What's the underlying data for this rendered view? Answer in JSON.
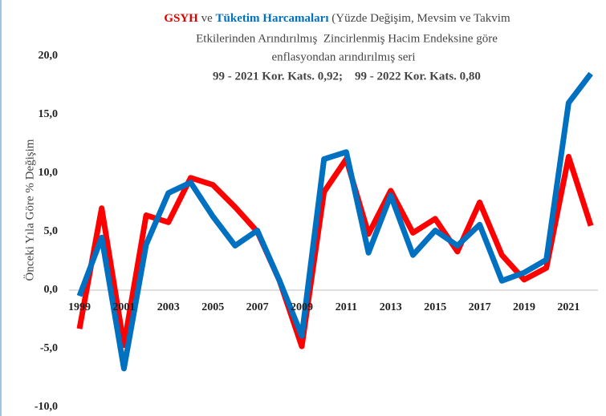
{
  "chart_data": {
    "type": "line",
    "title_connector": " ve ",
    "title_line1_rest": " (Yüzde Değişim, Mevsim ve Takvim",
    "title_line2": "Etkilerinden Arındırılmış  Zincirlenmiş Hacim Endeksine göre",
    "title_line3": "enflasyondan arındırılmış seri",
    "title_line4": "99 - 2021 Kor. Kats. 0,92;    99 - 2022 Kor. Kats. 0,80",
    "y_label": "Önceki Yıla Göre % Değişim",
    "categories": [
      "1999",
      null,
      "2001",
      null,
      "2003",
      null,
      "2005",
      null,
      "2007",
      null,
      "2009",
      null,
      "2011",
      null,
      "2013",
      null,
      "2015",
      null,
      "2017",
      null,
      "2019",
      null,
      "2021",
      null
    ],
    "series": [
      {
        "name": "GSYH",
        "color": "#ff0000",
        "values": [
          -3.3,
          7.0,
          -4.7,
          6.4,
          5.8,
          9.6,
          9.0,
          7.1,
          5.0,
          0.8,
          -4.8,
          8.4,
          11.2,
          4.8,
          8.5,
          4.9,
          6.1,
          3.3,
          7.5,
          3.0,
          0.9,
          1.9,
          11.4,
          5.5
        ]
      },
      {
        "name": "Tüketim Harcamaları",
        "color": "#0070c0",
        "values": [
          -0.5,
          4.5,
          -6.7,
          3.9,
          8.3,
          9.2,
          6.3,
          3.8,
          5.1,
          0.8,
          -3.9,
          11.2,
          11.8,
          3.2,
          8.1,
          3.0,
          5.1,
          3.8,
          5.6,
          0.8,
          1.5,
          2.6,
          16.0,
          18.5
        ]
      }
    ],
    "ylim": [
      -10,
      20
    ],
    "yticks": [
      {
        "value": -10,
        "label": "-10,0"
      },
      {
        "value": -5,
        "label": "-5,0"
      },
      {
        "value": 0,
        "label": "0,0"
      },
      {
        "value": 5,
        "label": "5,0"
      },
      {
        "value": 10,
        "label": "10,0"
      },
      {
        "value": 15,
        "label": "15,0"
      },
      {
        "value": 20,
        "label": "20,0"
      }
    ]
  }
}
